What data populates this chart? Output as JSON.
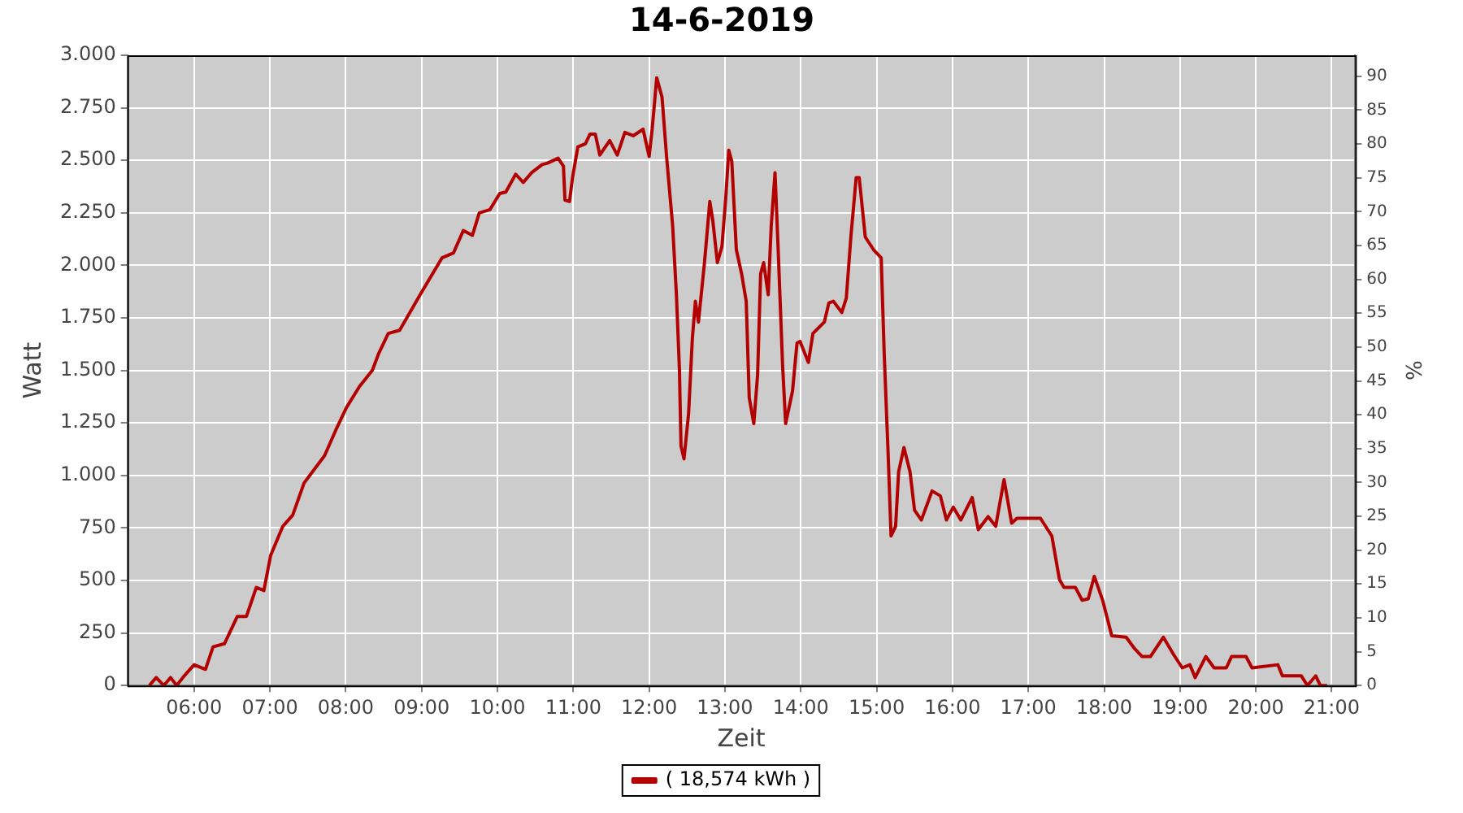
{
  "chart_data": {
    "type": "line",
    "title": "14-6-2019",
    "xlabel": "Zeit",
    "ylabel": "Watt",
    "y2label": "%",
    "xlim": [
      5.12,
      21.31
    ],
    "xticks": [
      {
        "value": 6,
        "label": "06:00"
      },
      {
        "value": 7,
        "label": "07:00"
      },
      {
        "value": 8,
        "label": "08:00"
      },
      {
        "value": 9,
        "label": "09:00"
      },
      {
        "value": 10,
        "label": "10:00"
      },
      {
        "value": 11,
        "label": "11:00"
      },
      {
        "value": 12,
        "label": "12:00"
      },
      {
        "value": 13,
        "label": "13:00"
      },
      {
        "value": 14,
        "label": "14:00"
      },
      {
        "value": 15,
        "label": "15:00"
      },
      {
        "value": 16,
        "label": "16:00"
      },
      {
        "value": 17,
        "label": "17:00"
      },
      {
        "value": 18,
        "label": "18:00"
      },
      {
        "value": 19,
        "label": "19:00"
      },
      {
        "value": 20,
        "label": "20:00"
      },
      {
        "value": 21,
        "label": "21:00"
      }
    ],
    "ylim": [
      0,
      3000
    ],
    "yticks": [
      0,
      250,
      500,
      750,
      {
        "value": 1000,
        "label": "1.000"
      },
      {
        "value": 1250,
        "label": "1.250"
      },
      {
        "value": 1500,
        "label": "1.500"
      },
      {
        "value": 1750,
        "label": "1.750"
      },
      {
        "value": 2000,
        "label": "2.000"
      },
      {
        "value": 2250,
        "label": "2.250"
      },
      {
        "value": 2500,
        "label": "2.500"
      },
      {
        "value": 2750,
        "label": "2.750"
      },
      {
        "value": 3000,
        "label": "3.000"
      }
    ],
    "y2lim": [
      0,
      93.1
    ],
    "y2ticks": [
      0,
      5,
      10,
      15,
      20,
      25,
      30,
      35,
      40,
      45,
      50,
      55,
      60,
      65,
      70,
      75,
      80,
      85,
      90
    ],
    "grid": true,
    "legend": "bottom",
    "marker": "none",
    "line_style": "solid",
    "series": [
      {
        "name": "( 18,574 kWh )",
        "color": "#b30000",
        "x": [
          5.41,
          5.5,
          5.6,
          5.69,
          5.77,
          5.87,
          6.0,
          6.15,
          6.25,
          6.4,
          6.57,
          6.69,
          6.82,
          6.92,
          7.01,
          7.17,
          7.3,
          7.45,
          7.72,
          7.87,
          8.01,
          8.18,
          8.35,
          8.43,
          8.56,
          8.71,
          8.98,
          9.27,
          9.42,
          9.55,
          9.67,
          9.76,
          9.9,
          10.03,
          10.11,
          10.24,
          10.34,
          10.45,
          10.59,
          10.66,
          10.8,
          10.87,
          10.89,
          10.95,
          10.99,
          11.06,
          11.16,
          11.22,
          11.29,
          11.35,
          11.48,
          11.58,
          11.68,
          11.79,
          11.92,
          12.0,
          12.04,
          12.1,
          12.17,
          12.23,
          12.31,
          12.36,
          12.4,
          12.42,
          12.46,
          12.52,
          12.57,
          12.61,
          12.65,
          12.73,
          12.8,
          12.84,
          12.9,
          12.96,
          13.01,
          13.05,
          13.09,
          13.15,
          13.22,
          13.28,
          13.32,
          13.38,
          13.43,
          13.47,
          13.51,
          13.57,
          13.61,
          13.66,
          13.7,
          13.76,
          13.8,
          13.89,
          13.95,
          13.99,
          14.1,
          14.16,
          14.31,
          14.37,
          14.43,
          14.54,
          14.6,
          14.66,
          14.73,
          14.77,
          14.85,
          14.96,
          15.06,
          15.1,
          15.15,
          15.19,
          15.25,
          15.29,
          15.36,
          15.44,
          15.5,
          15.59,
          15.73,
          15.84,
          15.92,
          16.01,
          16.11,
          16.26,
          16.34,
          16.47,
          16.57,
          16.68,
          16.78,
          16.85,
          17.16,
          17.31,
          17.41,
          17.47,
          17.62,
          17.71,
          17.79,
          17.87,
          17.98,
          18.1,
          18.29,
          18.4,
          18.5,
          18.61,
          18.78,
          18.92,
          19.03,
          19.13,
          19.2,
          19.34,
          19.45,
          19.61,
          19.68,
          19.87,
          19.95,
          20.29,
          20.35,
          20.6,
          20.68,
          20.79,
          20.85,
          20.94
        ],
        "values": [
          0,
          38,
          0,
          38,
          0,
          46,
          99,
          77,
          184,
          199,
          329,
          329,
          467,
          452,
          620,
          758,
          811,
          964,
          1094,
          1217,
          1324,
          1423,
          1500,
          1577,
          1676,
          1691,
          1860,
          2036,
          2059,
          2166,
          2143,
          2250,
          2265,
          2342,
          2349,
          2434,
          2395,
          2441,
          2480,
          2487,
          2510,
          2472,
          2311,
          2304,
          2418,
          2564,
          2579,
          2625,
          2625,
          2525,
          2594,
          2525,
          2633,
          2617,
          2648,
          2518,
          2648,
          2893,
          2801,
          2518,
          2189,
          1860,
          1500,
          1140,
          1079,
          1293,
          1653,
          1829,
          1730,
          2013,
          2304,
          2212,
          2013,
          2089,
          2319,
          2548,
          2495,
          2074,
          1959,
          1829,
          1370,
          1247,
          1477,
          1959,
          2013,
          1860,
          2189,
          2441,
          2089,
          1523,
          1247,
          1400,
          1630,
          1638,
          1538,
          1676,
          1730,
          1821,
          1829,
          1776,
          1844,
          2135,
          2418,
          2418,
          2135,
          2074,
          2036,
          1577,
          1117,
          712,
          758,
          1018,
          1133,
          1018,
          834,
          788,
          926,
          903,
          788,
          849,
          788,
          895,
          742,
          804,
          758,
          980,
          773,
          796,
          796,
          712,
          505,
          467,
          467,
          406,
          413,
          520,
          406,
          237,
          230,
          176,
          138,
          138,
          230,
          145,
          84,
          99,
          38,
          138,
          84,
          84,
          138,
          138,
          84,
          99,
          46,
          46,
          0,
          46,
          0,
          0
        ]
      }
    ]
  }
}
